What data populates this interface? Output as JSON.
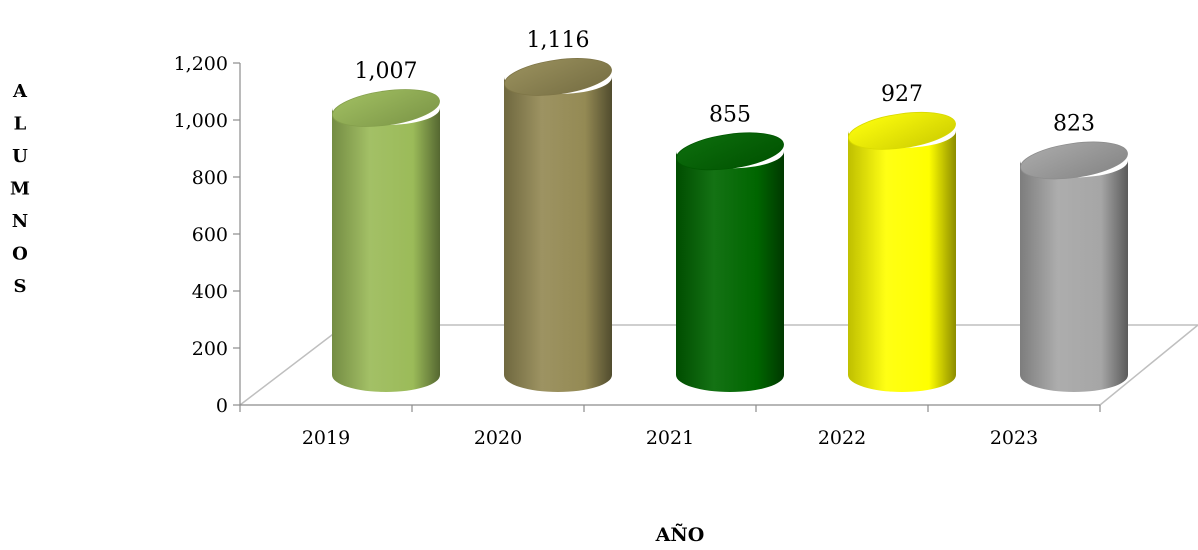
{
  "chart_data": {
    "type": "bar",
    "style": "3d-cylinder",
    "title": "",
    "xlabel": "AÑO",
    "ylabel": "ALUMNOS",
    "categories": [
      "2019",
      "2020",
      "2021",
      "2022",
      "2023"
    ],
    "values": [
      1007,
      1116,
      855,
      927,
      823
    ],
    "value_labels": [
      "1,007",
      "1,116",
      "855",
      "927",
      "823"
    ],
    "yticks": [
      "0",
      "200",
      "400",
      "600",
      "800",
      "1,000",
      "1,200"
    ],
    "ytick_values": [
      0,
      200,
      400,
      600,
      800,
      1000,
      1200
    ],
    "ylim": [
      0,
      1200
    ],
    "grid": false,
    "legend": "none",
    "bar_colors": [
      "#9bbb59",
      "#948a54",
      "#006600",
      "#ffff00",
      "#a6a6a6"
    ]
  }
}
